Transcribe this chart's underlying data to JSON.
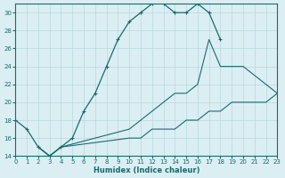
{
  "xlabel": "Humidex (Indice chaleur)",
  "bg_color": "#daeef3",
  "line_color": "#1a6b6b",
  "grid_color": "#b8d8df",
  "xlim": [
    0,
    23
  ],
  "ylim": [
    14,
    31
  ],
  "xticks": [
    0,
    1,
    2,
    3,
    4,
    5,
    6,
    7,
    8,
    9,
    10,
    11,
    12,
    13,
    14,
    15,
    16,
    17,
    18,
    19,
    20,
    21,
    22,
    23
  ],
  "yticks": [
    14,
    16,
    18,
    20,
    22,
    24,
    26,
    28,
    30
  ],
  "curve1_x": [
    0,
    1,
    2,
    3,
    4,
    5,
    6,
    7,
    8,
    9,
    10,
    11,
    12,
    13,
    14,
    15,
    16,
    17,
    18
  ],
  "curve1_y": [
    18,
    17,
    15,
    14,
    15,
    16,
    19,
    21,
    24,
    27,
    29,
    30,
    31,
    31,
    30,
    30,
    31,
    30,
    27
  ],
  "curve2_x": [
    2,
    3,
    4,
    10,
    11,
    12,
    13,
    14,
    15,
    16,
    17,
    18,
    19,
    20,
    21,
    22,
    23
  ],
  "curve2_y": [
    15,
    14,
    15,
    17,
    18,
    19,
    20,
    21,
    21,
    22,
    27,
    24,
    24,
    24,
    23,
    22,
    21
  ],
  "curve3_x": [
    2,
    3,
    4,
    10,
    11,
    12,
    13,
    14,
    15,
    16,
    17,
    18,
    19,
    20,
    21,
    22,
    23
  ],
  "curve3_y": [
    15,
    14,
    15,
    16,
    16,
    17,
    17,
    17,
    18,
    18,
    19,
    19,
    20,
    20,
    20,
    20,
    21
  ]
}
